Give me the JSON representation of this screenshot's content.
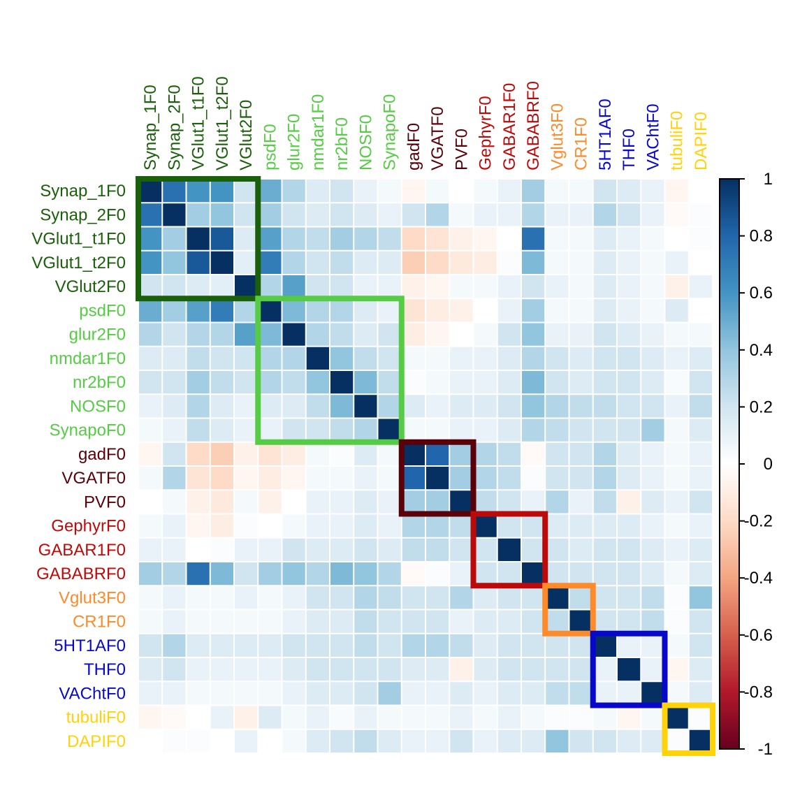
{
  "chart_data": {
    "type": "heatmap",
    "labels": [
      "Synap_1F0",
      "Synap_2F0",
      "VGlut1_t1F0",
      "VGlut1_t2F0",
      "VGlut2F0",
      "psdF0",
      "glur2F0",
      "nmdar1F0",
      "nr2bF0",
      "NOSF0",
      "SynapoF0",
      "gadF0",
      "VGATF0",
      "PVF0",
      "GephyrF0",
      "GABAR1F0",
      "GABABRF0",
      "Vglut3F0",
      "CR1F0",
      "5HT1AF0",
      "THF0",
      "VAChtF0",
      "tubuliF0",
      "DAPIF0"
    ],
    "label_group": [
      0,
      0,
      0,
      0,
      0,
      1,
      1,
      1,
      1,
      1,
      1,
      2,
      2,
      2,
      3,
      3,
      3,
      4,
      4,
      5,
      5,
      5,
      6,
      6
    ],
    "group_colors": [
      "#1a5f0a",
      "#55cc44",
      "#5a0008",
      "#bb0a0a",
      "#ff8a2a",
      "#0808cc",
      "#ffd20a"
    ],
    "matrix": [
      [
        1,
        0.75,
        0.6,
        0.6,
        0.2,
        0.5,
        0.3,
        0.15,
        0.2,
        0.1,
        0.05,
        -0.05,
        0.05,
        0,
        0.05,
        0.1,
        0.35,
        0.05,
        0.05,
        0.2,
        0.15,
        0.1,
        -0.05,
        0
      ],
      [
        0.75,
        1,
        0.35,
        0.4,
        0.2,
        0.35,
        0.2,
        0.15,
        0.2,
        0.15,
        0.1,
        0.2,
        0.3,
        0.05,
        0.1,
        0.1,
        0.3,
        0.1,
        0.1,
        0.3,
        0.2,
        0.1,
        -0.03,
        0.02
      ],
      [
        0.6,
        0.35,
        1,
        0.85,
        0.15,
        0.55,
        0.3,
        0.25,
        0.35,
        0.3,
        0.25,
        -0.2,
        -0.15,
        -0.08,
        -0.05,
        0,
        0.75,
        0.05,
        0.05,
        0.15,
        0.1,
        0.05,
        0,
        0.02
      ],
      [
        0.6,
        0.4,
        0.85,
        1,
        0.12,
        0.7,
        0.3,
        0.2,
        0.25,
        0.15,
        0.15,
        -0.25,
        -0.2,
        -0.12,
        -0.1,
        0.02,
        0.45,
        0.05,
        0.05,
        0.15,
        0.1,
        0.05,
        0.1,
        0
      ],
      [
        0.2,
        0.2,
        0.15,
        0.12,
        1,
        0.3,
        0.55,
        0.2,
        0.2,
        0.1,
        0.1,
        -0.08,
        -0.05,
        0.05,
        0.05,
        0.1,
        0.2,
        0.1,
        0.05,
        0.15,
        0.1,
        0.05,
        -0.08,
        0.1
      ],
      [
        0.5,
        0.35,
        0.55,
        0.7,
        0.3,
        1,
        0.45,
        0.3,
        0.3,
        0.15,
        0.1,
        -0.15,
        -0.1,
        -0.08,
        0,
        0.1,
        0.35,
        0.05,
        0.05,
        0.15,
        0.1,
        0.05,
        0.15,
        0
      ],
      [
        0.3,
        0.2,
        0.3,
        0.3,
        0.55,
        0.45,
        1,
        0.3,
        0.25,
        0.15,
        0.2,
        -0.1,
        -0.05,
        0,
        0.05,
        0.2,
        0.4,
        0.1,
        0.1,
        0.2,
        0.15,
        0.1,
        0.05,
        0.05
      ],
      [
        0.15,
        0.15,
        0.25,
        0.2,
        0.2,
        0.3,
        0.3,
        1,
        0.4,
        0.25,
        0.2,
        0.05,
        0.05,
        0.1,
        0.1,
        0.15,
        0.3,
        0.2,
        0.15,
        0.2,
        0.2,
        0.15,
        0.1,
        0.15
      ],
      [
        0.2,
        0.2,
        0.35,
        0.25,
        0.2,
        0.3,
        0.25,
        0.4,
        1,
        0.45,
        0.25,
        0.02,
        0.05,
        0.1,
        0.1,
        0.15,
        0.45,
        0.2,
        0.15,
        0.2,
        0.2,
        0.15,
        0.03,
        0.2
      ],
      [
        0.1,
        0.15,
        0.3,
        0.15,
        0.1,
        0.15,
        0.15,
        0.25,
        0.45,
        1,
        0.3,
        0.15,
        0.1,
        0.15,
        0.15,
        0.2,
        0.4,
        0.3,
        0.25,
        0.25,
        0.2,
        0.2,
        0.1,
        0.25
      ],
      [
        0.05,
        0.1,
        0.25,
        0.15,
        0.1,
        0.1,
        0.2,
        0.2,
        0.25,
        0.3,
        1,
        0.05,
        0.05,
        0.1,
        0.1,
        0.15,
        0.3,
        0.25,
        0.2,
        0.2,
        0.2,
        0.35,
        0.05,
        0.15
      ],
      [
        -0.05,
        0.2,
        -0.2,
        -0.25,
        -0.08,
        -0.15,
        -0.1,
        0.05,
        0.02,
        0.15,
        0.05,
        1,
        0.8,
        0.35,
        0.3,
        0.25,
        -0.03,
        0.2,
        0.2,
        0.3,
        0.15,
        0.1,
        0.05,
        0.1
      ],
      [
        0.05,
        0.3,
        -0.15,
        -0.2,
        -0.05,
        -0.1,
        -0.05,
        0.05,
        0.05,
        0.1,
        0.05,
        0.8,
        1,
        0.35,
        0.3,
        0.25,
        0.02,
        0.2,
        0.2,
        0.3,
        0.15,
        0.1,
        0.05,
        0.1
      ],
      [
        0,
        0.05,
        -0.08,
        -0.12,
        0.05,
        -0.08,
        0,
        0.1,
        0.1,
        0.15,
        0.1,
        0.35,
        0.35,
        1,
        0.25,
        0.2,
        0.1,
        0.3,
        0.1,
        0.25,
        -0.08,
        0.15,
        0.1,
        0.2
      ],
      [
        0.05,
        0.1,
        -0.05,
        -0.1,
        0.02,
        0,
        0.05,
        0.1,
        0.1,
        0.15,
        0.1,
        0.3,
        0.3,
        0.25,
        1,
        0.2,
        0.2,
        0.15,
        0.15,
        0.15,
        0.15,
        0.1,
        0.05,
        0.1
      ],
      [
        0.1,
        0.1,
        0,
        0.02,
        0.1,
        0.1,
        0.2,
        0.15,
        0.15,
        0.2,
        0.15,
        0.25,
        0.25,
        0.2,
        0.2,
        1,
        0.2,
        0.2,
        0.15,
        0.2,
        0.2,
        0.15,
        0.1,
        0.15
      ],
      [
        0.35,
        0.3,
        0.75,
        0.45,
        0.2,
        0.35,
        0.4,
        0.3,
        0.45,
        0.4,
        0.3,
        -0.03,
        0.02,
        0.1,
        0.2,
        0.2,
        1,
        0.2,
        0.2,
        0.2,
        0.2,
        0.15,
        0.05,
        0.15
      ],
      [
        0.05,
        0.1,
        0.05,
        0.05,
        0.1,
        0.05,
        0.1,
        0.2,
        0.2,
        0.3,
        0.25,
        0.2,
        0.2,
        0.3,
        0.15,
        0.2,
        0.2,
        1,
        0.25,
        0.2,
        0.2,
        0.25,
        0.02,
        0.4
      ],
      [
        0.05,
        0.1,
        0.05,
        0.05,
        0.05,
        0.05,
        0.1,
        0.15,
        0.15,
        0.25,
        0.2,
        0.2,
        0.2,
        0.1,
        0.15,
        0.15,
        0.2,
        0.25,
        1,
        0.2,
        0.2,
        0.25,
        0.02,
        0.2
      ],
      [
        0.2,
        0.3,
        0.15,
        0.15,
        0.15,
        0.15,
        0.2,
        0.2,
        0.2,
        0.25,
        0.2,
        0.3,
        0.3,
        0.25,
        0.15,
        0.2,
        0.2,
        0.2,
        0.2,
        1,
        0.1,
        0.1,
        0.05,
        0.2
      ],
      [
        0.15,
        0.2,
        0.1,
        0.1,
        0.1,
        0.1,
        0.15,
        0.2,
        0.2,
        0.2,
        0.2,
        0.15,
        0.15,
        -0.08,
        0.15,
        0.2,
        0.2,
        0.2,
        0.2,
        0.1,
        1,
        0.1,
        -0.05,
        0.15
      ],
      [
        0.1,
        0.1,
        0.05,
        0.05,
        0.05,
        0.05,
        0.1,
        0.15,
        0.15,
        0.2,
        0.35,
        0.1,
        0.1,
        0.15,
        0.1,
        0.15,
        0.15,
        0.25,
        0.25,
        0.1,
        0.1,
        1,
        0.05,
        0.15
      ],
      [
        -0.05,
        -0.03,
        0,
        0.1,
        -0.08,
        0.15,
        0.05,
        0.1,
        0.03,
        0.1,
        0.05,
        0.05,
        0.05,
        0.1,
        0.05,
        0.1,
        0.05,
        0.02,
        0.02,
        0.05,
        -0.05,
        0.05,
        1,
        0.02
      ],
      [
        0,
        0.02,
        0.02,
        0,
        0.1,
        0,
        0.05,
        0.15,
        0.2,
        0.25,
        0.15,
        0.1,
        0.1,
        0.2,
        0.1,
        0.15,
        0.15,
        0.4,
        0.2,
        0.2,
        0.15,
        0.15,
        0.02,
        1
      ]
    ],
    "clusters": [
      {
        "start": 0,
        "end": 4,
        "group": 0
      },
      {
        "start": 5,
        "end": 10,
        "group": 1
      },
      {
        "start": 11,
        "end": 13,
        "group": 2
      },
      {
        "start": 14,
        "end": 16,
        "group": 3
      },
      {
        "start": 17,
        "end": 18,
        "group": 4
      },
      {
        "start": 19,
        "end": 21,
        "group": 5
      },
      {
        "start": 22,
        "end": 23,
        "group": 6
      }
    ],
    "colorbar": {
      "ticks": [
        1,
        0.8,
        0.6,
        0.4,
        0.2,
        0,
        -0.2,
        -0.4,
        -0.6,
        -0.8,
        -1
      ],
      "tick_labels": [
        "1",
        "0.8",
        "0.6",
        "0.4",
        "0.2",
        "0",
        "-0.2",
        "-0.4",
        "-0.6",
        "-0.8",
        "-1"
      ],
      "range": [
        -1,
        1
      ],
      "palette": [
        "#67001f",
        "#b2182b",
        "#d6604d",
        "#f4a582",
        "#fddbc7",
        "#ffffff",
        "#d1e5f0",
        "#92c5de",
        "#4393c3",
        "#2166ac",
        "#053061"
      ]
    }
  }
}
